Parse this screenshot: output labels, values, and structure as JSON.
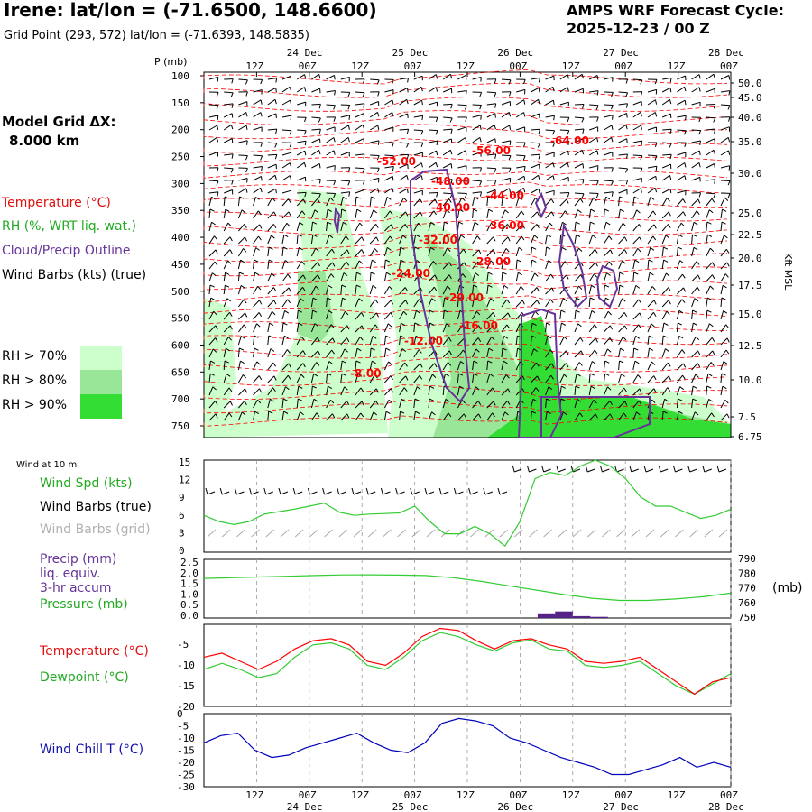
{
  "header": {
    "title": "Irene:  lat/lon = (-71.6500, 148.6600)",
    "subtitle": "Grid Point (293, 572) lat/lon = (-71.6393, 148.5835)",
    "cycle_line1": "AMPS WRF Forecast Cycle:",
    "cycle_line2": "2025-12-23 / 00  Z"
  },
  "left_panel": {
    "model_grid_line1": "Model Grid ΔX:",
    "model_grid_line2": "8.000 km",
    "temperature_label": "Temperature (°C)",
    "rh_label": "RH (%, WRT liq. wat.)",
    "cloud_label": "Cloud/Precip Outline",
    "windbarbs_label": "Wind Barbs (kts) (true)",
    "rh70": "RH > 70%",
    "rh80": "RH > 80%",
    "rh90": "RH > 90%",
    "wind10m": "Wind at 10 m",
    "windspd": "Wind Spd (kts)",
    "windbarbs_true": "Wind Barbs (true)",
    "windbarbs_grid": "Wind Barbs (grid)",
    "precip1": "Precip (mm)",
    "precip2": "liq. equiv.",
    "precip3": "3-hr accum",
    "pressure": "Pressure (mb)",
    "temperature": "Temperature (°C)",
    "dewpoint": "Dewpoint (°C)",
    "windchill": "Wind Chill T (°C)",
    "mb_unit": "(mb)",
    "p_axis_title": "P (mb)",
    "kft_label": "Kft MSL"
  },
  "colors": {
    "temperature": "#ff0000",
    "rh_green": "#33cc33",
    "rh70": "#ccffcc",
    "rh80": "#99e699",
    "rh90": "#33dd33",
    "cloud": "#663399",
    "windchill": "#0000bb",
    "grid_barbs": "#aaaaaa",
    "precip_bar": "#552288"
  },
  "time_axis": {
    "top_labels": [
      "12Z",
      "00Z",
      "12Z",
      "00Z",
      "12Z",
      "00Z",
      "12Z",
      "00Z",
      "12Z",
      "00Z"
    ],
    "top_dates": [
      "24 Dec",
      "25 Dec",
      "26 Dec",
      "27 Dec",
      "28 Dec"
    ],
    "bottom_labels": [
      "12Z",
      "00Z",
      "12Z",
      "00Z",
      "12Z",
      "00Z",
      "12Z",
      "00Z",
      "12Z",
      "00Z"
    ],
    "bottom_dates": [
      "24 Dec",
      "25 Dec",
      "26 Dec",
      "27 Dec",
      "28 Dec"
    ]
  },
  "chart_data": [
    {
      "type": "heatmap",
      "pressure_ticks": [
        "100",
        "150",
        "200",
        "250",
        "300",
        "350",
        "400",
        "450",
        "500",
        "550",
        "600",
        "650",
        "700",
        "750"
      ],
      "kft_ticks": [
        "50.0",
        "45.0",
        "40.0",
        "35.0",
        "30.0",
        "25.0",
        "22.5",
        "20.0",
        "17.5",
        "15.0",
        "12.5",
        "10.0",
        "7.5",
        "6.75"
      ],
      "temperature_contour_labels": [
        "-64.00",
        "-56.00",
        "-52.00",
        "-48.00",
        "-44.00",
        "-40.00",
        "-36.00",
        "-32.00",
        "-28.00",
        "-24.00",
        "-20.00",
        "-16.00",
        "-12.00",
        "-8.00"
      ]
    },
    {
      "type": "line",
      "name": "wind",
      "yticks": [
        "15",
        "12",
        "9",
        "6",
        "3",
        "0"
      ],
      "ylim": [
        0,
        15
      ],
      "series": [
        {
          "values": [
            6,
            5,
            4.5,
            5,
            6.2,
            6.6,
            7,
            7.5,
            8,
            6.5,
            6,
            6.2,
            6.3,
            6.4,
            7.5,
            5,
            3,
            3,
            4.2,
            3,
            1,
            5,
            12,
            13,
            12.5,
            14,
            15,
            14,
            12,
            9,
            7.5,
            7.5,
            6.5,
            5.5,
            6,
            7
          ]
        }
      ]
    },
    {
      "type": "line",
      "name": "precip_pressure",
      "yticks_left": [
        "2.5",
        "2.0",
        "1.5",
        "1.0",
        "0.5",
        "0.0"
      ],
      "yticks_right": [
        "790",
        "780",
        "770",
        "760",
        "750"
      ],
      "pressure_ylim": [
        750,
        790
      ],
      "precip_ylim": [
        0,
        2.5
      ],
      "series": [
        {
          "values": [
            777,
            777.5,
            778,
            778.5,
            779,
            779.4,
            779.5,
            779.3,
            779,
            777.5,
            775,
            772,
            769,
            766,
            763.5,
            762,
            762,
            763,
            764.5,
            767
          ]
        }
      ],
      "precip_bars": [
        {
          "x": 19.0,
          "value": 0.2
        },
        {
          "x": 20.0,
          "value": 0.28
        },
        {
          "x": 21.0,
          "value": 0.08
        },
        {
          "x": 22.0,
          "value": 0.05
        }
      ]
    },
    {
      "type": "line",
      "name": "temp_dewpoint",
      "yticks": [
        "-5",
        "-10",
        "-15",
        "-20"
      ],
      "ylim": [
        -20,
        0
      ],
      "series": [
        {
          "values": [
            -8,
            -7,
            -9,
            -11,
            -9,
            -6,
            -4,
            -3.5,
            -5,
            -9,
            -10,
            -7,
            -3,
            -1,
            -1.5,
            -4,
            -6,
            -4,
            -3.5,
            -5,
            -6,
            -9,
            -9.5,
            -9,
            -8,
            -11,
            -14,
            -17,
            -14,
            -13
          ]
        },
        {
          "values": [
            -11,
            -9.5,
            -11,
            -13,
            -12,
            -8,
            -5,
            -4.5,
            -6,
            -10,
            -11,
            -8,
            -4,
            -2,
            -3,
            -5,
            -6.5,
            -4.5,
            -3.8,
            -6,
            -6.5,
            -10,
            -10.5,
            -10,
            -9,
            -12,
            -15,
            -17,
            -14.5,
            -12
          ]
        }
      ]
    },
    {
      "type": "line",
      "name": "windchill",
      "yticks": [
        "0",
        "-5",
        "-10",
        "-15",
        "-20",
        "-25",
        "-30"
      ],
      "ylim": [
        -30,
        0
      ],
      "series": [
        {
          "values": [
            -12,
            -9,
            -8,
            -15,
            -18,
            -17,
            -14,
            -12,
            -10,
            -8,
            -12,
            -15,
            -16,
            -12,
            -4,
            -2,
            -3,
            -5,
            -10,
            -12,
            -15,
            -18,
            -20,
            -22,
            -25,
            -25,
            -23,
            -21,
            -18,
            -22,
            -20,
            -22
          ]
        }
      ]
    }
  ]
}
